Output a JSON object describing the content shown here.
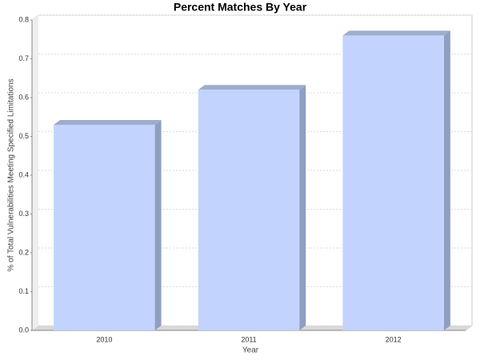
{
  "chart_data": {
    "type": "bar3d",
    "title": "Percent Matches By Year",
    "x_label": "Year",
    "y_label": "% of Total Vulnerabilities Meeting Specified Limitations",
    "categories": [
      "2010",
      "2011",
      "2012"
    ],
    "values": [
      0.53,
      0.62,
      0.76
    ],
    "color": "#c2d3fd",
    "ylim": [
      0,
      0.8
    ],
    "yticks": [
      {
        "value": 0,
        "label": "0.0"
      },
      0.1,
      0.2,
      0.3,
      0.4,
      0.5,
      0.6,
      0.7,
      0.8
    ],
    "grid": true
  }
}
